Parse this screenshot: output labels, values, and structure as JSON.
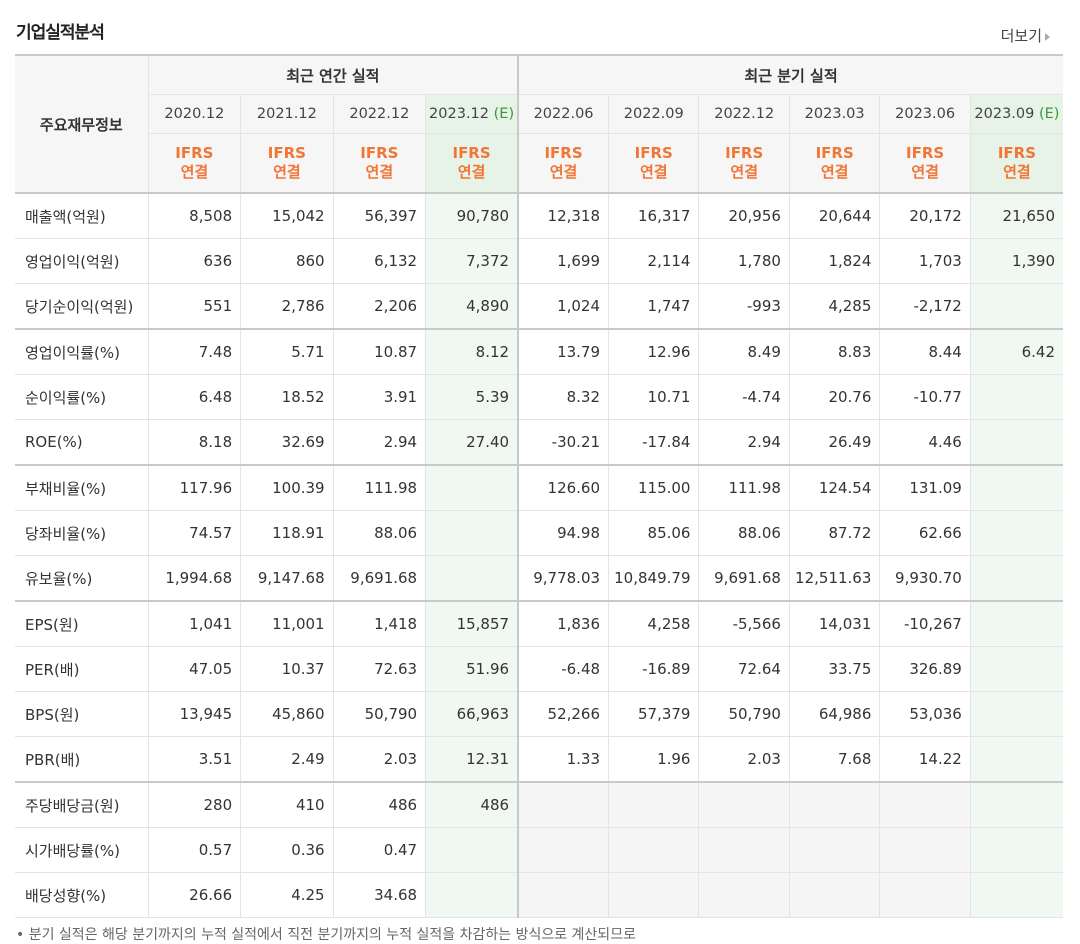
{
  "title": "기업실적분석",
  "more_label": "더보기",
  "header": {
    "row_label": "주요재무정보",
    "annual_label": "최근 연간 실적",
    "quarter_label": "최근 분기 실적",
    "annual_periods": [
      "2020.12",
      "2021.12",
      "2022.12",
      "2023.12"
    ],
    "estimate_mark": "(E)",
    "quarter_periods": [
      "2022.06",
      "2022.09",
      "2022.12",
      "2023.03",
      "2023.06",
      "2023.09"
    ],
    "ifrs_top": "IFRS",
    "ifrs_bottom": "연결"
  },
  "rows": [
    {
      "label": "매출액(억원)",
      "values": [
        "8,508",
        "15,042",
        "56,397",
        "90,780",
        "12,318",
        "16,317",
        "20,956",
        "20,644",
        "20,172",
        "21,650"
      ]
    },
    {
      "label": "영업이익(억원)",
      "values": [
        "636",
        "860",
        "6,132",
        "7,372",
        "1,699",
        "2,114",
        "1,780",
        "1,824",
        "1,703",
        "1,390"
      ]
    },
    {
      "label": "당기순이익(억원)",
      "values": [
        "551",
        "2,786",
        "2,206",
        "4,890",
        "1,024",
        "1,747",
        "-993",
        "4,285",
        "-2,172",
        ""
      ]
    },
    {
      "label": "영업이익률(%)",
      "values": [
        "7.48",
        "5.71",
        "10.87",
        "8.12",
        "13.79",
        "12.96",
        "8.49",
        "8.83",
        "8.44",
        "6.42"
      ]
    },
    {
      "label": "순이익률(%)",
      "values": [
        "6.48",
        "18.52",
        "3.91",
        "5.39",
        "8.32",
        "10.71",
        "-4.74",
        "20.76",
        "-10.77",
        ""
      ]
    },
    {
      "label": "ROE(%)",
      "values": [
        "8.18",
        "32.69",
        "2.94",
        "27.40",
        "-30.21",
        "-17.84",
        "2.94",
        "26.49",
        "4.46",
        ""
      ]
    },
    {
      "label": "부채비율(%)",
      "values": [
        "117.96",
        "100.39",
        "111.98",
        "",
        "126.60",
        "115.00",
        "111.98",
        "124.54",
        "131.09",
        ""
      ]
    },
    {
      "label": "당좌비율(%)",
      "values": [
        "74.57",
        "118.91",
        "88.06",
        "",
        "94.98",
        "85.06",
        "88.06",
        "87.72",
        "62.66",
        ""
      ]
    },
    {
      "label": "유보율(%)",
      "values": [
        "1,994.68",
        "9,147.68",
        "9,691.68",
        "",
        "9,778.03",
        "10,849.79",
        "9,691.68",
        "12,511.63",
        "9,930.70",
        ""
      ]
    },
    {
      "label": "EPS(원)",
      "values": [
        "1,041",
        "11,001",
        "1,418",
        "15,857",
        "1,836",
        "4,258",
        "-5,566",
        "14,031",
        "-10,267",
        ""
      ]
    },
    {
      "label": "PER(배)",
      "values": [
        "47.05",
        "10.37",
        "72.63",
        "51.96",
        "-6.48",
        "-16.89",
        "72.64",
        "33.75",
        "326.89",
        ""
      ]
    },
    {
      "label": "BPS(원)",
      "values": [
        "13,945",
        "45,860",
        "50,790",
        "66,963",
        "52,266",
        "57,379",
        "50,790",
        "64,986",
        "53,036",
        ""
      ]
    },
    {
      "label": "PBR(배)",
      "values": [
        "3.51",
        "2.49",
        "2.03",
        "12.31",
        "1.33",
        "1.96",
        "2.03",
        "7.68",
        "14.22",
        ""
      ]
    },
    {
      "label": "주당배당금(원)",
      "values": [
        "280",
        "410",
        "486",
        "486",
        "",
        "",
        "",
        "",
        "",
        ""
      ]
    },
    {
      "label": "시가배당률(%)",
      "values": [
        "0.57",
        "0.36",
        "0.47",
        "",
        "",
        "",
        "",
        "",
        "",
        ""
      ]
    },
    {
      "label": "배당성향(%)",
      "values": [
        "26.66",
        "4.25",
        "34.68",
        "",
        "",
        "",
        "",
        "",
        "",
        ""
      ]
    }
  ],
  "footnote": "• 분기 실적은 해당 분기까지의 누적 실적에서 직전 분기까지의 누적 실적을 차감하는 방식으로 계산되므로"
}
